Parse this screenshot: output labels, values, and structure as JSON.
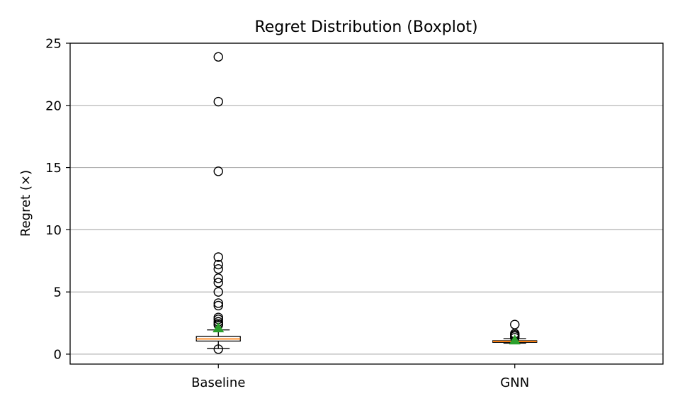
{
  "chart_data": {
    "type": "boxplot",
    "title": "Regret Distribution (Boxplot)",
    "xlabel": "",
    "ylabel": "Regret (×)",
    "ylim": [
      -0.8,
      25
    ],
    "yticks": [
      0,
      5,
      10,
      15,
      20,
      25
    ],
    "grid": "y",
    "legend": "none",
    "colors": {
      "median": "#ff7f0e",
      "mean_marker": "#2ca02c",
      "box_edge": "#000000",
      "grid": "#b0b0b0"
    },
    "categories": [
      "Baseline",
      "GNN"
    ],
    "boxes": [
      {
        "name": "Baseline",
        "whisker_low": 0.45,
        "q1": 1.05,
        "median": 1.22,
        "q3": 1.42,
        "whisker_high": 1.95,
        "mean": 2.1,
        "outliers": [
          0.4,
          2.35,
          2.45,
          2.6,
          2.8,
          2.95,
          3.9,
          4.1,
          5.0,
          5.75,
          6.1,
          6.85,
          7.2,
          7.8,
          14.7,
          20.3,
          23.9
        ]
      },
      {
        "name": "GNN",
        "whisker_low": 0.88,
        "q1": 0.95,
        "median": 1.02,
        "q3": 1.08,
        "whisker_high": 1.25,
        "mean": 1.12,
        "outliers": [
          1.32,
          1.45,
          1.55,
          1.65,
          2.38
        ]
      }
    ]
  }
}
